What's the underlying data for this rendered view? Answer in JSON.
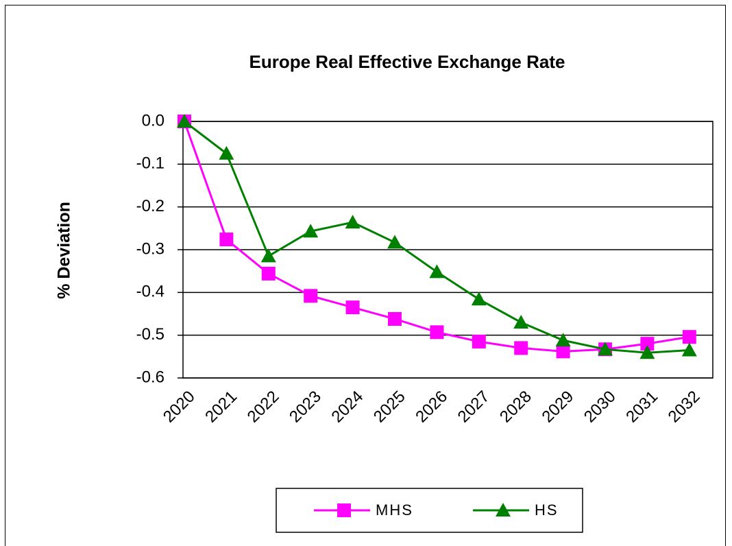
{
  "chart_data": {
    "type": "line",
    "title": "Europe Real Effective Exchange Rate",
    "y_label": "% Deviation",
    "categories": [
      "2020",
      "2021",
      "2022",
      "2023",
      "2024",
      "2025",
      "2026",
      "2027",
      "2028",
      "2029",
      "2030",
      "2031",
      "2032"
    ],
    "series": [
      {
        "name": "MHS",
        "color": "#ff00ff",
        "marker": "square",
        "values": [
          0,
          -0.276,
          -0.356,
          -0.408,
          -0.435,
          -0.462,
          -0.493,
          -0.515,
          -0.53,
          -0.538,
          -0.533,
          -0.52,
          -0.504
        ]
      },
      {
        "name": "HS",
        "color": "#008000",
        "marker": "triangle",
        "values": [
          0,
          -0.075,
          -0.315,
          -0.257,
          -0.236,
          -0.283,
          -0.352,
          -0.416,
          -0.47,
          -0.512,
          -0.533,
          -0.541,
          -0.535
        ]
      }
    ],
    "ylim": [
      -0.6,
      0
    ],
    "yticks": [
      {
        "value": 0,
        "label": "0.0"
      },
      -0.1,
      -0.2,
      -0.3,
      -0.4,
      -0.5,
      -0.6
    ],
    "grid": true,
    "legend": "bottom"
  }
}
